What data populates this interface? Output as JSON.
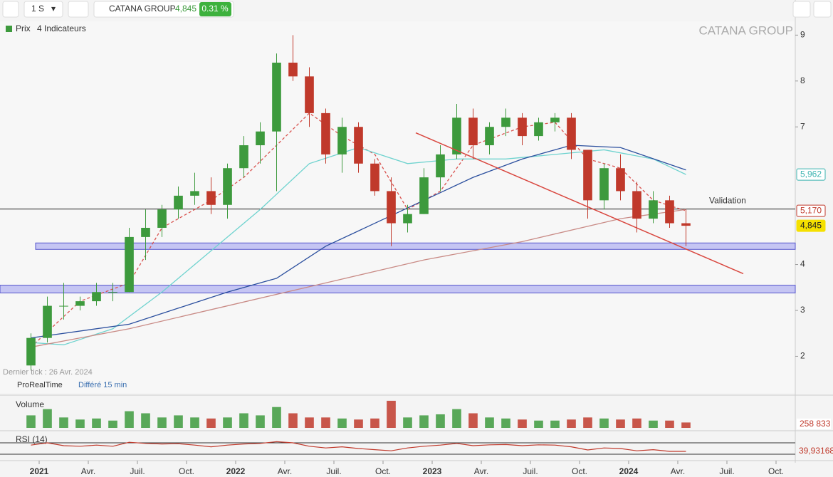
{
  "toolbar": {
    "interval": "1 S",
    "symbol": "CATANA GROUP",
    "price": "4,845",
    "change": "0.31 %"
  },
  "legend": {
    "price": "Prix",
    "indicators": "4 Indicateurs"
  },
  "footer": {
    "last_tick": "Dernier tick : 26 Avr. 2024",
    "source": "ProRealTime",
    "delay": "Différé 15 min"
  },
  "chart_data": {
    "type": "candlestick",
    "title": "CATANA GROUP",
    "x": [
      "2020-12",
      "2021-01",
      "2021-02",
      "2021-03",
      "2021-04",
      "2021-05",
      "2021-06",
      "2021-07",
      "2021-08",
      "2021-09",
      "2021-10",
      "2021-11",
      "2021-12",
      "2022-01",
      "2022-02",
      "2022-03",
      "2022-04",
      "2022-05",
      "2022-06",
      "2022-07",
      "2022-08",
      "2022-09",
      "2022-10",
      "2022-11",
      "2022-12",
      "2023-01",
      "2023-02",
      "2023-03",
      "2023-04",
      "2023-05",
      "2023-06",
      "2023-07",
      "2023-08",
      "2023-09",
      "2023-10",
      "2023-11",
      "2023-12",
      "2024-01",
      "2024-02",
      "2024-03",
      "2024-04"
    ],
    "open": [
      1.8,
      2.4,
      3.1,
      3.1,
      3.2,
      3.4,
      3.4,
      4.6,
      4.8,
      5.2,
      5.5,
      5.6,
      5.3,
      6.1,
      6.6,
      6.9,
      8.4,
      8.1,
      7.3,
      6.4,
      7.0,
      6.2,
      5.6,
      4.9,
      5.1,
      5.9,
      6.4,
      7.2,
      6.6,
      7.0,
      7.2,
      6.8,
      7.1,
      7.2,
      6.5,
      5.4,
      6.1,
      5.6,
      5.0,
      5.4,
      4.9
    ],
    "high": [
      2.5,
      3.3,
      3.6,
      3.3,
      3.6,
      3.6,
      4.8,
      5.2,
      5.3,
      5.7,
      6.0,
      5.9,
      6.2,
      6.8,
      7.1,
      8.6,
      9.0,
      8.3,
      7.4,
      7.2,
      7.1,
      6.3,
      5.9,
      5.3,
      6.1,
      6.6,
      7.5,
      7.4,
      7.1,
      7.4,
      7.3,
      7.2,
      7.3,
      7.3,
      6.5,
      6.2,
      6.4,
      5.8,
      5.6,
      5.5,
      5.2
    ],
    "low": [
      1.7,
      2.3,
      2.8,
      3.0,
      3.1,
      3.2,
      3.4,
      4.1,
      4.6,
      5.0,
      5.3,
      5.1,
      5.0,
      5.9,
      6.2,
      5.6,
      8.0,
      7.0,
      6.2,
      6.0,
      6.0,
      5.5,
      4.4,
      4.7,
      5.1,
      5.6,
      6.3,
      6.3,
      6.4,
      6.8,
      6.6,
      6.7,
      6.9,
      6.3,
      5.0,
      5.2,
      5.4,
      4.7,
      4.9,
      4.8,
      4.4
    ],
    "close": [
      2.4,
      3.1,
      3.1,
      3.2,
      3.4,
      3.4,
      4.6,
      4.8,
      5.2,
      5.5,
      5.6,
      5.3,
      6.1,
      6.6,
      6.9,
      8.4,
      8.1,
      7.3,
      6.4,
      7.0,
      6.2,
      5.6,
      4.9,
      5.1,
      5.9,
      6.4,
      7.2,
      6.6,
      7.0,
      7.2,
      6.8,
      7.1,
      7.2,
      6.5,
      5.4,
      6.1,
      5.6,
      5.0,
      5.4,
      4.9,
      4.845
    ],
    "xlim": [
      "2020-11",
      "2024-11"
    ],
    "xticks": [
      {
        "value": "2021-01",
        "label": "2021"
      },
      {
        "value": "2021-04",
        "label": "Avr."
      },
      {
        "value": "2021-07",
        "label": "Juil."
      },
      {
        "value": "2021-10",
        "label": "Oct."
      },
      {
        "value": "2022-01",
        "label": "2022"
      },
      {
        "value": "2022-04",
        "label": "Avr."
      },
      {
        "value": "2022-07",
        "label": "Juil."
      },
      {
        "value": "2022-10",
        "label": "Oct."
      },
      {
        "value": "2023-01",
        "label": "2023"
      },
      {
        "value": "2023-04",
        "label": "Avr."
      },
      {
        "value": "2023-07",
        "label": "Juil."
      },
      {
        "value": "2023-10",
        "label": "Oct."
      },
      {
        "value": "2024-01",
        "label": "2024"
      },
      {
        "value": "2024-04",
        "label": "Avr."
      },
      {
        "value": "2024-07",
        "label": "Juil."
      },
      {
        "value": "2024-10",
        "label": "Oct."
      }
    ],
    "ylim": [
      1.2,
      9.3
    ],
    "yticks": [
      2,
      3,
      4,
      7,
      8,
      9
    ],
    "up_color": "#3d9a3d",
    "down_color": "#c0392b",
    "moving_averages": [
      {
        "color": "#d9534f",
        "dashed": true,
        "x": [
          "2020-12",
          "2021-03",
          "2021-06",
          "2021-08",
          "2021-11",
          "2022-01",
          "2022-03",
          "2022-05",
          "2022-07",
          "2022-09",
          "2022-11",
          "2023-01",
          "2023-03",
          "2023-06",
          "2023-08",
          "2023-10",
          "2023-12",
          "2024-02",
          "2024-04"
        ],
        "values": [
          2.2,
          3.2,
          3.6,
          4.8,
          5.4,
          5.9,
          6.6,
          7.3,
          6.8,
          6.4,
          5.2,
          5.6,
          6.6,
          7.0,
          7.1,
          6.3,
          6.1,
          5.4,
          5.17
        ]
      },
      {
        "color": "#6fd3cf",
        "dashed": false,
        "x": [
          "2020-12",
          "2021-02",
          "2021-05",
          "2021-08",
          "2021-11",
          "2022-02",
          "2022-05",
          "2022-08",
          "2022-11",
          "2023-02",
          "2023-05",
          "2023-08",
          "2023-11",
          "2024-02",
          "2024-04"
        ],
        "values": [
          2.3,
          2.25,
          2.6,
          3.4,
          4.3,
          5.2,
          6.2,
          6.55,
          6.2,
          6.3,
          6.3,
          6.4,
          6.5,
          6.3,
          5.962
        ]
      },
      {
        "color": "#2b4f9e",
        "dashed": false,
        "x": [
          "2020-12",
          "2021-06",
          "2021-12",
          "2022-03",
          "2022-06",
          "2022-09",
          "2022-12",
          "2023-03",
          "2023-06",
          "2023-09",
          "2023-12",
          "2024-04"
        ],
        "values": [
          2.4,
          2.7,
          3.4,
          3.7,
          4.4,
          4.9,
          5.4,
          5.9,
          6.3,
          6.6,
          6.55,
          6.06
        ]
      },
      {
        "color": "#c98b86",
        "dashed": false,
        "x": [
          "2020-12",
          "2021-06",
          "2021-12",
          "2022-06",
          "2022-12",
          "2023-06",
          "2023-12",
          "2024-04"
        ],
        "values": [
          2.2,
          2.6,
          3.1,
          3.6,
          4.1,
          4.5,
          5.0,
          5.2
        ]
      }
    ],
    "trendline": {
      "color": "#d9473f",
      "x": [
        "2022-12",
        "2024-08"
      ],
      "values": [
        6.87,
        3.8
      ]
    },
    "hline": {
      "value": 5.21,
      "label": "Validation"
    },
    "zones": [
      {
        "range": [
          4.33,
          4.47
        ]
      },
      {
        "range": [
          3.38,
          3.55
        ]
      }
    ],
    "zone_color": "#8888ee",
    "price_tags": [
      {
        "value": 5.962,
        "label": "5,962",
        "color": "#3bb3b0",
        "bg": "#ffffff"
      },
      {
        "value": 5.17,
        "label": "5,170",
        "color": "#c0392b",
        "bg": "#ffffff"
      },
      {
        "value": 4.845,
        "label": "4,845",
        "color": "#222222",
        "bg": "#f5e000"
      }
    ],
    "volume": {
      "title": "Volume",
      "ylim": [
        0,
        1400000
      ],
      "values": [
        600000,
        900000,
        500000,
        400000,
        450000,
        350000,
        800000,
        700000,
        500000,
        600000,
        500000,
        450000,
        500000,
        700000,
        600000,
        1000000,
        700000,
        500000,
        500000,
        450000,
        400000,
        450000,
        1300000,
        500000,
        600000,
        650000,
        900000,
        700000,
        500000,
        450000,
        400000,
        350000,
        350000,
        400000,
        500000,
        450000,
        400000,
        450000,
        350000,
        350000,
        258833
      ],
      "last": {
        "value": 258833,
        "label": "258 833"
      }
    },
    "rsi": {
      "title": "RSI (14)",
      "ylim": [
        20,
        100
      ],
      "levels": [
        70,
        30
      ],
      "values": [
        62,
        70,
        60,
        58,
        62,
        58,
        72,
        68,
        66,
        67,
        62,
        56,
        62,
        66,
        68,
        74,
        70,
        58,
        52,
        56,
        50,
        46,
        42,
        52,
        58,
        62,
        68,
        60,
        63,
        64,
        60,
        63,
        62,
        56,
        45,
        52,
        50,
        42,
        46,
        40,
        39.93168
      ],
      "last": {
        "value": 39.93168,
        "label": "39,93168"
      }
    }
  }
}
